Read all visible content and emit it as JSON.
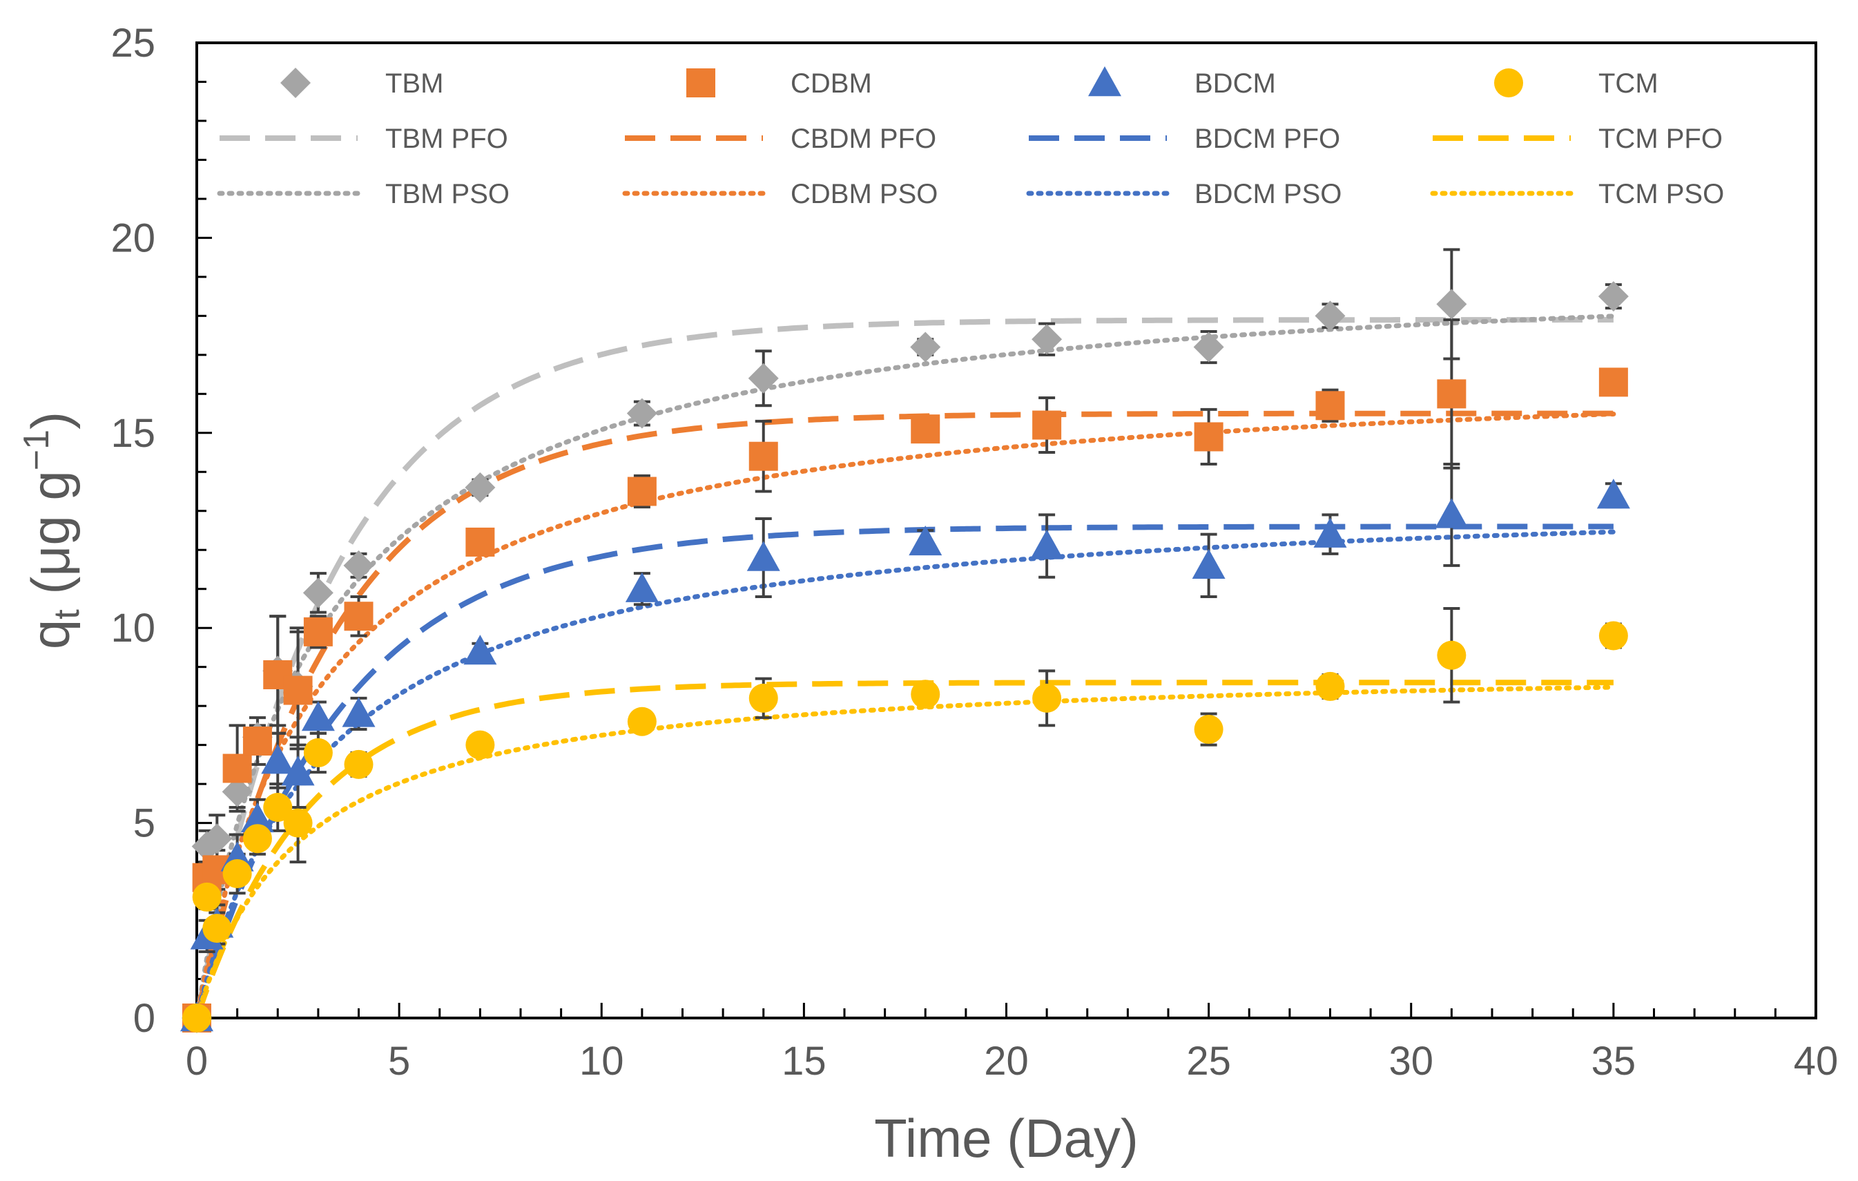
{
  "chart_data": {
    "type": "scatter",
    "title": "",
    "xlabel": "Time (Day)",
    "ylabel": {
      "base": "q",
      "sub": "t",
      "unit_open": " (μg g",
      "sup": "−1",
      "unit_close": ")"
    },
    "xlim": [
      0,
      40
    ],
    "ylim": [
      0,
      25
    ],
    "x_ticks": [
      0,
      5,
      10,
      15,
      20,
      25,
      30,
      35,
      40
    ],
    "y_ticks": [
      0,
      5,
      10,
      15,
      20,
      25
    ],
    "grid": false,
    "legend_position": "top, inside plot, 4 columns",
    "x": [
      0,
      0.25,
      0.5,
      1,
      1.5,
      2,
      2.5,
      3,
      4,
      7,
      11,
      14,
      18,
      21,
      25,
      28,
      31,
      35
    ],
    "series": [
      {
        "name": "TBM",
        "marker": "diamond",
        "color": "#A5A5A5",
        "values": [
          0,
          4.4,
          4.6,
          5.8,
          7.2,
          8.9,
          8.5,
          10.9,
          11.6,
          13.6,
          15.5,
          16.4,
          17.2,
          17.4,
          17.2,
          18.0,
          18.3,
          18.5
        ],
        "errors": [
          0,
          0.4,
          0.6,
          0.4,
          0.3,
          1.4,
          1.5,
          0.5,
          0.3,
          0.2,
          0.3,
          0.7,
          0.2,
          0.4,
          0.4,
          0.3,
          1.4,
          0.3
        ]
      },
      {
        "name": "CDBM",
        "marker": "square",
        "color": "#ED7D31",
        "values": [
          0,
          3.6,
          3.8,
          6.4,
          7.1,
          8.8,
          8.4,
          9.9,
          10.3,
          12.2,
          13.5,
          14.4,
          15.1,
          15.2,
          14.9,
          15.7,
          16.0,
          16.3
        ],
        "errors": [
          0,
          0.4,
          0.5,
          1.1,
          0.6,
          1.5,
          1.5,
          0.4,
          0.5,
          0.3,
          0.4,
          0.9,
          0.2,
          0.7,
          0.7,
          0.4,
          1.9,
          0.3
        ]
      },
      {
        "name": "BDCM",
        "marker": "triangle",
        "color": "#4472C4",
        "values": [
          0,
          2.1,
          2.4,
          4.1,
          5.1,
          6.6,
          6.3,
          7.7,
          7.8,
          9.4,
          11.0,
          11.8,
          12.2,
          12.1,
          11.6,
          12.4,
          12.9,
          13.4
        ],
        "errors": [
          0,
          0.4,
          0.5,
          0.6,
          0.5,
          0.7,
          0.9,
          0.4,
          0.4,
          0.2,
          0.4,
          1.0,
          0.3,
          0.8,
          0.8,
          0.5,
          1.3,
          0.3
        ]
      },
      {
        "name": "TCM",
        "marker": "circle",
        "color": "#FFC000",
        "values": [
          0,
          3.1,
          2.3,
          3.7,
          4.6,
          5.4,
          5.0,
          6.8,
          6.5,
          7.0,
          7.6,
          8.2,
          8.3,
          8.2,
          7.4,
          8.5,
          9.3,
          9.8
        ],
        "errors": [
          0,
          0.3,
          0.4,
          0.5,
          0.4,
          0.6,
          1.0,
          0.5,
          0.3,
          0.2,
          0.2,
          0.5,
          0.2,
          0.7,
          0.4,
          0.3,
          1.2,
          0.3
        ]
      }
    ],
    "model_curves": [
      {
        "name": "TBM PFO",
        "model": "PFO",
        "color": "#BFBFBF",
        "dash": "long-dash",
        "qe": 17.9,
        "k": 0.3
      },
      {
        "name": "CBDM PFO",
        "model": "PFO",
        "color": "#ED7D31",
        "dash": "long-dash",
        "qe": 15.5,
        "k": 0.3
      },
      {
        "name": "BDCM PFO",
        "model": "PFO",
        "color": "#4472C4",
        "dash": "long-dash",
        "qe": 12.6,
        "k": 0.28
      },
      {
        "name": "TCM PFO",
        "model": "PFO",
        "color": "#FFC000",
        "dash": "long-dash",
        "qe": 8.6,
        "k": 0.36
      },
      {
        "name": "TBM PSO",
        "model": "PSO",
        "color": "#A5A5A5",
        "dash": "dotted",
        "qe": 19.5,
        "k": 0.0175
      },
      {
        "name": "CDBM PSO",
        "model": "PSO",
        "color": "#ED7D31",
        "dash": "dotted",
        "qe": 16.8,
        "k": 0.02
      },
      {
        "name": "BDCM PSO",
        "model": "PSO",
        "color": "#4472C4",
        "dash": "dotted",
        "qe": 13.6,
        "k": 0.023
      },
      {
        "name": "TCM PSO",
        "model": "PSO",
        "color": "#FFC000",
        "dash": "dotted",
        "qe": 9.1,
        "k": 0.043
      }
    ],
    "legend": {
      "rows": [
        [
          "TBM",
          "CDBM",
          "BDCM",
          "TCM"
        ],
        [
          "TBM PFO",
          "CBDM PFO",
          "BDCM PFO",
          "TCM PFO"
        ],
        [
          "TBM PSO",
          "CDBM PSO",
          "BDCM PSO",
          "TCM PSO"
        ]
      ]
    }
  }
}
